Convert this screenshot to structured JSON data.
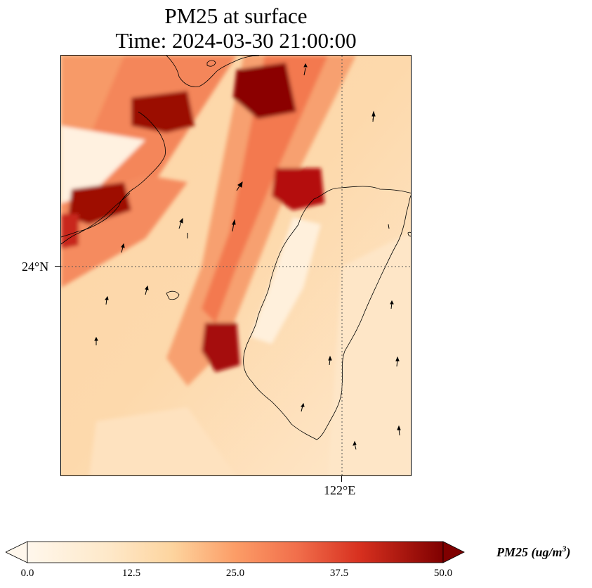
{
  "title": {
    "line1": "PM25 at surface",
    "line2": "Time: 2024-03-30 21:00:00"
  },
  "map": {
    "lat_label": "24°N",
    "lon_label": "122°E",
    "colormap": "OrRd",
    "colors": {
      "min": "#fff7ec",
      "low": "#fdd49e",
      "mid": "#fc8d59",
      "high": "#d7301f",
      "max": "#7f0000"
    }
  },
  "colorbar": {
    "ticks": [
      "0.0",
      "12.5",
      "25.0",
      "37.5",
      "50.0"
    ],
    "title_main": "PM25 (ug/m",
    "title_sup": "3",
    "title_end": ")",
    "range": [
      0,
      50
    ],
    "extend": "both"
  }
}
